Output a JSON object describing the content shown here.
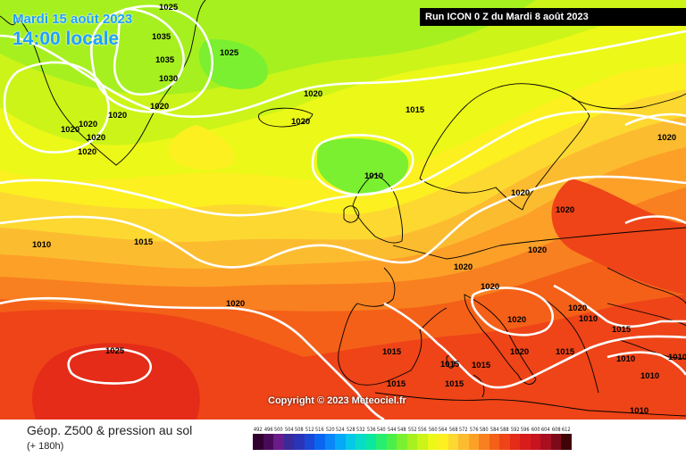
{
  "header": {
    "date_line": "Mardi 15 août 2023",
    "time_line": "14:00 locale",
    "run_info": "Run ICON 0 Z du Mardi 8 août 2023",
    "accent_color": "#1ea0ff"
  },
  "copyright": "Copyright © 2023 Meteociel.fr",
  "footer": {
    "title": "Géop. Z500 & pression au sol",
    "lead": "(+ 180h)"
  },
  "legend": {
    "values": [
      "492",
      "496",
      "500",
      "504",
      "508",
      "512",
      "516",
      "520",
      "524",
      "528",
      "532",
      "536",
      "540",
      "544",
      "548",
      "552",
      "556",
      "560",
      "564",
      "568",
      "572",
      "576",
      "580",
      "584",
      "588",
      "592",
      "596",
      "600",
      "604",
      "608",
      "612"
    ],
    "colors": [
      "#30002f",
      "#4a0a5a",
      "#6a1c8a",
      "#3a2a9a",
      "#2a34b8",
      "#1c48d8",
      "#0a66f0",
      "#0a86f8",
      "#06a8f8",
      "#06c8e8",
      "#08dcc8",
      "#0ae8a0",
      "#28ee70",
      "#4af048",
      "#7af030",
      "#a6f020",
      "#ccf418",
      "#ecf818",
      "#fcf020",
      "#fcd830",
      "#fcbc30",
      "#fca028",
      "#f88020",
      "#f46018",
      "#ee4418",
      "#e42c18",
      "#d81c1c",
      "#c81420",
      "#a81020",
      "#7c0a18",
      "#400408"
    ]
  },
  "isobars": [
    "1025",
    "1035",
    "1035",
    "1030",
    "1025",
    "1020",
    "1020",
    "1020",
    "1020",
    "1020",
    "1020",
    "1020",
    "1015",
    "1010",
    "1010",
    "1015",
    "1020",
    "1020",
    "1020",
    "1020",
    "1020",
    "1020",
    "1020",
    "1020",
    "1025",
    "1015",
    "1015",
    "1015",
    "1015",
    "1015",
    "1015",
    "1010",
    "1010",
    "1010",
    "1020",
    "1020",
    "1015",
    "1010",
    "1010",
    "1020"
  ]
}
